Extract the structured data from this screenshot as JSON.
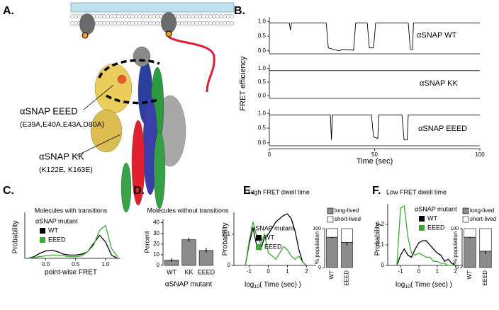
{
  "panel_labels": [
    "A.",
    "B.",
    "C.",
    "D.",
    "E.",
    "F."
  ],
  "diagram": {
    "labels": [
      {
        "name": "αSNAP EEED",
        "mutations": "(E39A,E40A,E43A,D80A)"
      },
      {
        "name": "αSNAP KK",
        "mutations": "(K122E, K163E)"
      }
    ]
  },
  "chart_data": [
    {
      "type": "traces",
      "xlabel": "Time (sec)",
      "ylabel": "FRET efficiency",
      "xlim": [
        0,
        100
      ],
      "xticks": [
        0,
        50,
        100
      ],
      "ylim": [
        -0.1,
        1.15
      ],
      "yticks": [
        {
          "value": 0,
          "label": "0.0"
        },
        {
          "value": 0.5,
          "label": "0.5"
        },
        {
          "value": 1,
          "label": "1.0"
        }
      ],
      "series": [
        {
          "name": "αSNAP WT",
          "color": "#000000",
          "x": [
            0,
            9.5,
            10,
            10.5,
            27,
            28,
            33,
            35,
            40,
            41,
            46.5,
            47.5,
            49.5,
            50.5,
            66,
            67,
            68,
            68.5,
            100
          ],
          "values": [
            0.95,
            0.95,
            0.7,
            0.95,
            0.95,
            0.1,
            0.0,
            0.05,
            0.02,
            0.95,
            0.95,
            0.1,
            0.1,
            0.95,
            0.95,
            0.05,
            0.05,
            0.95,
            0.95
          ]
        },
        {
          "name": "αSNAP KK",
          "color": "#000000",
          "x": [
            0,
            100
          ],
          "values": [
            0.92,
            0.92
          ]
        },
        {
          "name": "αSNAP EEED",
          "color": "#000000",
          "x": [
            0,
            29,
            29.5,
            30,
            48.5,
            49.5,
            51.5,
            52,
            63,
            64,
            65.5,
            66,
            100
          ],
          "values": [
            0.95,
            0.95,
            0.1,
            0.95,
            0.95,
            0.2,
            0.15,
            0.95,
            0.95,
            0.1,
            0.1,
            0.95,
            0.95
          ]
        }
      ]
    },
    {
      "type": "line",
      "title": "Molecules with transitions",
      "legend_title": "αSNAP mutant",
      "xlabel": "point-wise FRET",
      "ylabel": "Probability",
      "xlim": [
        -0.35,
        1.25
      ],
      "xticks": [
        {
          "value": 0,
          "label": "0.0"
        },
        {
          "value": 0.5,
          "label": "0.5"
        },
        {
          "value": 1,
          "label": "1.0"
        }
      ],
      "ylim": [
        0,
        0.28
      ],
      "x": [
        -0.3,
        -0.2,
        -0.1,
        0,
        0.1,
        0.2,
        0.3,
        0.4,
        0.5,
        0.6,
        0.7,
        0.8,
        0.9,
        1.0,
        1.1,
        1.2
      ],
      "series": [
        {
          "name": "WT",
          "color": "#000000",
          "values": [
            0.0,
            0.01,
            0.03,
            0.045,
            0.05,
            0.04,
            0.025,
            0.02,
            0.02,
            0.025,
            0.04,
            0.09,
            0.14,
            0.1,
            0.02,
            0.0
          ]
        },
        {
          "name": "EEED",
          "color": "#3aaa35",
          "values": [
            0.0,
            0.005,
            0.01,
            0.015,
            0.02,
            0.02,
            0.015,
            0.01,
            0.01,
            0.015,
            0.04,
            0.08,
            0.17,
            0.2,
            0.06,
            0.01
          ]
        }
      ]
    },
    {
      "type": "bar",
      "title": "Molecules without transitions",
      "xlabel": "αSNAP mutant",
      "ylabel": "Percent",
      "categories": [
        "WT",
        "KK",
        "EEED"
      ],
      "values": [
        5,
        24,
        14
      ],
      "errors": [
        1.5,
        2,
        2
      ],
      "color": "#8c8c8c",
      "ylim": [
        0,
        43
      ],
      "yticks": [
        0,
        10,
        20,
        30,
        40
      ]
    },
    {
      "type": "line",
      "title": "High FRET dwell time",
      "legend_title": "αSNAP mutant",
      "xlabel": {
        "base": "log",
        "sub": "10",
        "rest": "( Time (sec) )"
      },
      "ylabel": "Probability",
      "xlim": [
        -1.8,
        2.5
      ],
      "xticks": [
        -1,
        0,
        1,
        2
      ],
      "ylim": [
        0,
        0.17
      ],
      "yticks": [
        0,
        0.1
      ],
      "x": [
        -1.2,
        -1.0,
        -0.8,
        -0.6,
        -0.4,
        -0.2,
        0,
        0.2,
        0.4,
        0.6,
        0.8,
        1.0,
        1.2,
        1.4,
        1.6,
        1.8,
        2.0
      ],
      "series": [
        {
          "name": "WT",
          "color": "#000000",
          "values": [
            0,
            0.07,
            0.12,
            0.06,
            0.05,
            0.09,
            0.1,
            0.12,
            0.14,
            0.15,
            0.16,
            0.165,
            0.15,
            0.11,
            0.05,
            0.01,
            0
          ]
        },
        {
          "name": "EEED",
          "color": "#3aaa35",
          "values": [
            0,
            0.08,
            0.14,
            0.09,
            0.07,
            0.1,
            0.04,
            0.03,
            0.02,
            0.04,
            0.06,
            0.05,
            0.03,
            0.02,
            0.03,
            0.01,
            0
          ]
        }
      ]
    },
    {
      "type": "stacked_bar",
      "ylabel": "% population",
      "categories": [
        "WT",
        "EEED"
      ],
      "ylim": [
        0,
        100
      ],
      "yticks": [
        0,
        100
      ],
      "series": [
        {
          "name": "long-lived",
          "color": "#8c8c8c",
          "values": [
            78,
            65
          ],
          "errors": [
            3,
            8
          ]
        },
        {
          "name": "short-lived",
          "color": "#ffffff",
          "values": [
            22,
            35
          ]
        }
      ]
    },
    {
      "type": "line",
      "title": "Low FRET dwell time",
      "legend_title": "αSNAP mutant",
      "xlabel": {
        "base": "log",
        "sub": "10",
        "rest": "( Time (sec) )"
      },
      "ylabel": "Probability",
      "xlim": [
        -1.7,
        2.4
      ],
      "xticks": [
        -1,
        0,
        1,
        2
      ],
      "ylim": [
        0,
        0.3
      ],
      "yticks": [
        0,
        0.1,
        0.2
      ],
      "x": [
        -1.2,
        -1.0,
        -0.8,
        -0.6,
        -0.4,
        -0.2,
        0,
        0.2,
        0.4,
        0.6,
        0.8,
        1.0,
        1.2,
        1.4,
        1.6,
        1.8,
        2.0
      ],
      "series": [
        {
          "name": "WT",
          "color": "#000000",
          "values": [
            0,
            0.05,
            0.08,
            0.05,
            0.04,
            0.08,
            0.11,
            0.12,
            0.12,
            0.1,
            0.08,
            0.06,
            0.05,
            0.02,
            0.03,
            0.01,
            0
          ]
        },
        {
          "name": "EEED",
          "color": "#3aaa35",
          "values": [
            0,
            0.28,
            0.29,
            0.14,
            0.06,
            0.05,
            0.06,
            0.05,
            0.04,
            0.04,
            0.02,
            0.02,
            0.01,
            0.01,
            0,
            0,
            0
          ]
        }
      ]
    },
    {
      "type": "stacked_bar",
      "ylabel": "% population",
      "categories": [
        "WT",
        "EEED"
      ],
      "ylim": [
        0,
        100
      ],
      "yticks": [
        0,
        100
      ],
      "series": [
        {
          "name": "long-lived",
          "color": "#8c8c8c",
          "values": [
            78,
            42
          ],
          "errors": [
            3,
            8
          ]
        },
        {
          "name": "short-lived",
          "color": "#ffffff",
          "values": [
            22,
            58
          ]
        }
      ]
    }
  ]
}
